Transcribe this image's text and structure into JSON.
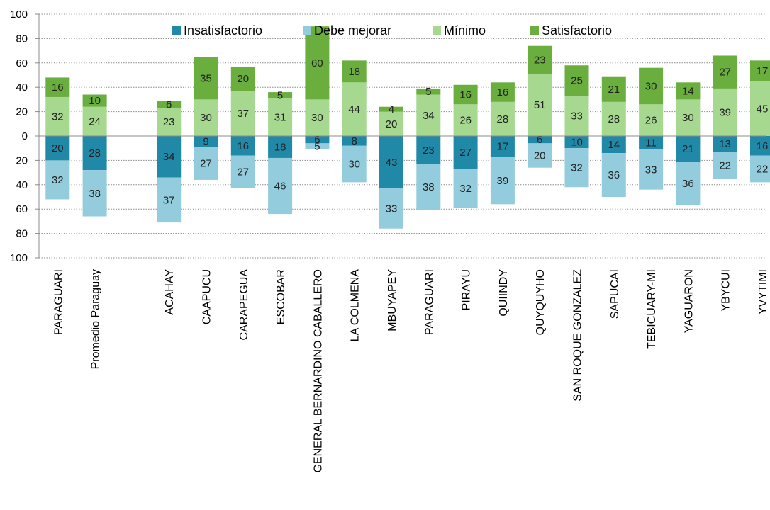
{
  "chart_data": {
    "type": "bar",
    "stacked": "diverging",
    "categories": [
      "PARAGUARI",
      "Promedio Paraguay",
      "",
      "ACAHAY",
      "CAAPUCU",
      "CARAPEGUA",
      "ESCOBAR",
      "GENERAL BERNARDINO CABALLERO",
      "LA COLMENA",
      "MBUYAPEY",
      "PARAGUARI",
      "PIRAYU",
      "QUIINDY",
      "QUYQUYHO",
      "SAN ROQUE GONZALEZ",
      "SAPUCAI",
      "TEBICUARY-MI",
      "YAGUARON",
      "YBYCUI",
      "YVYTIMI"
    ],
    "series": [
      {
        "name": "Insatisfactorio",
        "color": "#2189a8",
        "direction": "below",
        "values": [
          20,
          28,
          null,
          34,
          9,
          16,
          18,
          6,
          8,
          43,
          23,
          27,
          17,
          6,
          10,
          14,
          11,
          21,
          13,
          16
        ]
      },
      {
        "name": "Debe mejorar",
        "color": "#93cddd",
        "direction": "below",
        "values": [
          32,
          38,
          null,
          37,
          27,
          27,
          46,
          5,
          30,
          33,
          38,
          32,
          39,
          20,
          32,
          36,
          33,
          36,
          22,
          22
        ]
      },
      {
        "name": "Mínimo",
        "color": "#a6d890",
        "direction": "above",
        "values": [
          32,
          24,
          null,
          23,
          30,
          37,
          31,
          30,
          44,
          20,
          34,
          26,
          28,
          51,
          33,
          28,
          26,
          30,
          39,
          45
        ]
      },
      {
        "name": "Satisfactorio",
        "color": "#6aae3e",
        "direction": "above",
        "values": [
          16,
          10,
          null,
          6,
          35,
          20,
          5,
          60,
          18,
          4,
          5,
          16,
          16,
          23,
          25,
          21,
          30,
          14,
          27,
          17
        ]
      }
    ],
    "yticks": [
      "100",
      "80",
      "60",
      "40",
      "20",
      "0",
      "20",
      "40",
      "60",
      "80",
      "100"
    ],
    "ylim": [
      -100,
      100
    ],
    "legend_position": "top-center",
    "grid": "dotted-horizontal"
  }
}
